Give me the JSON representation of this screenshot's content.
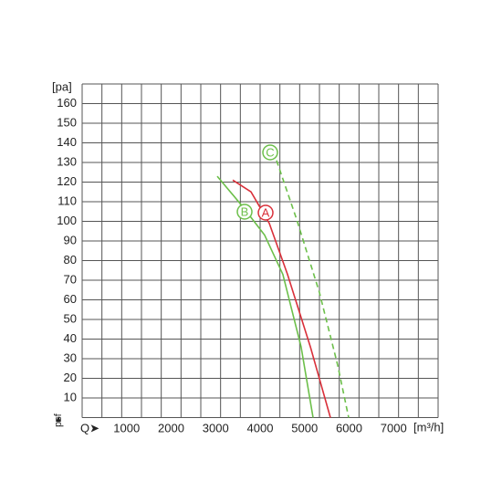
{
  "chart_data": {
    "type": "line",
    "y_label": "[pa]",
    "x_label": "[m³/h]",
    "x_axis_symbol": "Q➤",
    "y_axis_symbol": "psf",
    "xlim": [
      0,
      8000
    ],
    "xticks": [
      1000,
      2000,
      3000,
      4000,
      5000,
      6000,
      7000
    ],
    "ylim": [
      0,
      170
    ],
    "yticks": [
      10,
      20,
      30,
      40,
      50,
      60,
      70,
      80,
      90,
      100,
      110,
      120,
      130,
      140,
      150,
      160
    ],
    "grid": true,
    "series": [
      {
        "name": "A",
        "color": "#d9303a",
        "dashed": false,
        "x": [
          3385,
          3795,
          4205,
          4615,
          5130,
          5580
        ],
        "values": [
          121,
          115,
          99,
          73,
          36,
          0
        ]
      },
      {
        "name": "B",
        "color": "#6cbf4a",
        "dashed": false,
        "x": [
          3036,
          3590,
          4100,
          4510,
          4920,
          5190
        ],
        "values": [
          123,
          108,
          93,
          73,
          36,
          0
        ]
      },
      {
        "name": "C",
        "color": "#6cbf4a",
        "dashed": true,
        "x": [
          4370,
          4820,
          5330,
          5740,
          5990
        ],
        "values": [
          131,
          101,
          64,
          27,
          0
        ]
      }
    ]
  }
}
